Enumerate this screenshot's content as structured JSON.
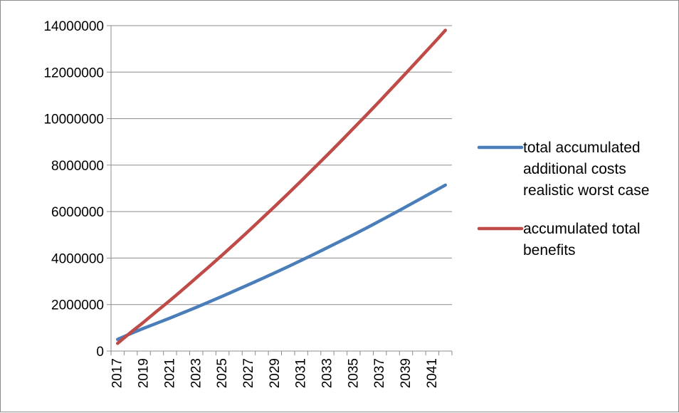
{
  "chart_data": {
    "type": "line",
    "title": "",
    "xlabel": "",
    "ylabel": "",
    "x": [
      2017,
      2018,
      2019,
      2020,
      2021,
      2022,
      2023,
      2024,
      2025,
      2026,
      2027,
      2028,
      2029,
      2030,
      2031,
      2032,
      2033,
      2034,
      2035,
      2036,
      2037,
      2038,
      2039,
      2040,
      2041,
      2042
    ],
    "x_tick_labels": [
      "2017",
      "2019",
      "2021",
      "2023",
      "2025",
      "2027",
      "2029",
      "2031",
      "2033",
      "2035",
      "2037",
      "2039",
      "2041"
    ],
    "ylim": [
      0,
      14000000
    ],
    "y_ticks": [
      0,
      2000000,
      4000000,
      6000000,
      8000000,
      10000000,
      12000000,
      14000000
    ],
    "y_tick_labels": [
      "0",
      "2000000",
      "4000000",
      "6000000",
      "8000000",
      "10000000",
      "12000000",
      "14000000"
    ],
    "grid": "horizontal",
    "legend_position": "right",
    "series": [
      {
        "name_lines": [
          "total accumulated",
          "additional costs",
          "realistic worst case"
        ],
        "color": "#4a7ebb",
        "values": [
          500000,
          750000,
          980000,
          1200000,
          1420000,
          1650000,
          1880000,
          2120000,
          2360000,
          2610000,
          2860000,
          3110000,
          3370000,
          3630000,
          3900000,
          4170000,
          4450000,
          4730000,
          5010000,
          5300000,
          5600000,
          5900000,
          6210000,
          6520000,
          6830000,
          7140000
        ]
      },
      {
        "name_lines": [
          "accumulated total",
          "benefits"
        ],
        "color": "#be4b48",
        "values": [
          330000,
          800000,
          1250000,
          1720000,
          2180000,
          2660000,
          3150000,
          3640000,
          4140000,
          4650000,
          5170000,
          5700000,
          6230000,
          6770000,
          7320000,
          7880000,
          8440000,
          9010000,
          9590000,
          10170000,
          10760000,
          11360000,
          11960000,
          12570000,
          13180000,
          13800000
        ]
      }
    ]
  }
}
